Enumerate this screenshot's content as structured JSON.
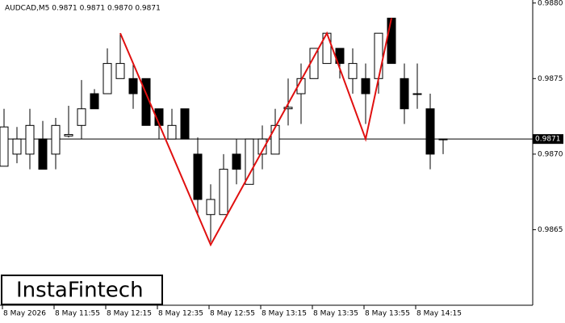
{
  "chart_data": {
    "type": "candlestick",
    "title": "AUDCAD,M5  0.9871 0.9871 0.9870 0.9871",
    "categories": [
      "8 May 2026",
      null,
      null,
      null,
      "8 May 11:55",
      null,
      null,
      null,
      "8 May 12:15",
      null,
      null,
      null,
      "8 May 12:35",
      null,
      null,
      null,
      "8 May 12:55",
      null,
      null,
      null,
      "8 May 13:15",
      null,
      null,
      null,
      "8 May 13:35",
      null,
      null,
      null,
      "8 May 13:55",
      null,
      null,
      null,
      "8 May 14:15",
      null,
      null
    ],
    "open": [
      0.98692,
      0.987,
      0.987,
      0.9871,
      0.987,
      0.98712,
      0.98719,
      0.9874,
      0.9874,
      0.9875,
      0.9875,
      0.9875,
      0.9873,
      0.9871,
      0.9873,
      0.987,
      0.9866,
      0.9866,
      0.987,
      0.9868,
      0.987,
      0.987,
      0.9873,
      0.9874,
      0.9875,
      0.9876,
      0.9877,
      0.9875,
      0.9875,
      0.9875,
      0.9879,
      0.9875,
      0.9874,
      0.9873,
      0.9871
    ],
    "high": [
      0.9873,
      0.98718,
      0.9873,
      0.98722,
      0.98724,
      0.98732,
      0.98749,
      0.98743,
      0.9877,
      0.9878,
      0.9876,
      0.9875,
      0.9873,
      0.9873,
      0.9873,
      0.98711,
      0.9868,
      0.987,
      0.9871,
      0.9871,
      0.98719,
      0.9873,
      0.9875,
      0.9876,
      0.9877,
      0.9878,
      0.9877,
      0.9877,
      0.9876,
      0.9878,
      0.9879,
      0.9876,
      0.9876,
      0.9874,
      0.9871
    ],
    "low": [
      0.98692,
      0.98694,
      0.9869,
      0.9869,
      0.9869,
      0.98711,
      0.9871,
      0.9873,
      0.9874,
      0.9875,
      0.9873,
      0.98719,
      0.9871,
      0.9871,
      0.9871,
      0.9866,
      0.98642,
      0.9866,
      0.9868,
      0.9868,
      0.9869,
      0.987,
      0.98719,
      0.9872,
      0.9875,
      0.9876,
      0.9875,
      0.9874,
      0.9872,
      0.9874,
      0.9876,
      0.9872,
      0.9873,
      0.9869,
      0.987
    ],
    "close": [
      0.98718,
      0.9871,
      0.98719,
      0.9869,
      0.98719,
      0.98713,
      0.9873,
      0.9873,
      0.9876,
      0.9876,
      0.9874,
      0.98719,
      0.98719,
      0.98719,
      0.9871,
      0.9867,
      0.9867,
      0.9869,
      0.9869,
      0.9871,
      0.9871,
      0.98719,
      0.98731,
      0.9875,
      0.9877,
      0.9878,
      0.9876,
      0.9876,
      0.9874,
      0.9878,
      0.9876,
      0.9873,
      0.9874,
      0.987,
      0.9871
    ],
    "up_color": "#ffffff",
    "down_color": "#000000",
    "ylim": [
      0.986,
      0.98802
    ],
    "yticks": [
      {
        "value": 0.9865,
        "label": "0.9865"
      },
      {
        "value": 0.987,
        "label": "0.9870"
      },
      {
        "value": 0.9875,
        "label": "0.9875"
      },
      {
        "value": 0.988,
        "label": "0.9880"
      }
    ],
    "last_price": {
      "value": 0.9871,
      "label": "0.9871"
    },
    "pattern": {
      "color": "#e01010",
      "indices": [
        9,
        16,
        25,
        28,
        30
      ],
      "values": [
        0.9878,
        0.9864,
        0.9878,
        0.9871,
        0.9879
      ]
    },
    "logo": "InstaFintech"
  }
}
